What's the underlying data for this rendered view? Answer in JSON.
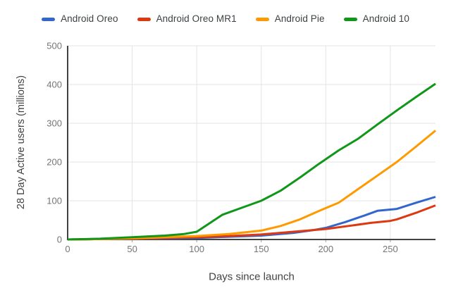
{
  "chart_data": {
    "type": "line",
    "title": "",
    "xlabel": "Days since launch",
    "ylabel": "28 Day Active users (millions)",
    "xlim": [
      0,
      285
    ],
    "ylim": [
      0,
      500
    ],
    "x_ticks": [
      0,
      50,
      100,
      150,
      200,
      250
    ],
    "y_ticks": [
      0,
      100,
      200,
      300,
      400,
      500
    ],
    "grid": true,
    "legend_position": "top",
    "colors": {
      "gridline": "#e3e3e3",
      "axis": "#424242",
      "tick_label": "#757575",
      "axis_title": "#424242",
      "background": "#ffffff"
    },
    "series": [
      {
        "name": "Android Oreo",
        "color": "#3366CC",
        "points": [
          [
            0,
            0
          ],
          [
            25,
            1
          ],
          [
            50,
            2
          ],
          [
            75,
            3
          ],
          [
            100,
            4
          ],
          [
            125,
            7
          ],
          [
            150,
            10
          ],
          [
            175,
            17
          ],
          [
            190,
            24
          ],
          [
            200,
            30
          ],
          [
            215,
            45
          ],
          [
            230,
            62
          ],
          [
            240,
            74
          ],
          [
            255,
            79
          ],
          [
            270,
            95
          ],
          [
            285,
            110
          ]
        ]
      },
      {
        "name": "Android Oreo MR1",
        "color": "#DC3912",
        "points": [
          [
            0,
            0
          ],
          [
            25,
            1
          ],
          [
            50,
            2
          ],
          [
            75,
            4
          ],
          [
            100,
            6
          ],
          [
            125,
            9
          ],
          [
            150,
            13
          ],
          [
            175,
            20
          ],
          [
            200,
            27
          ],
          [
            220,
            36
          ],
          [
            235,
            43
          ],
          [
            250,
            48
          ],
          [
            255,
            52
          ],
          [
            270,
            69
          ],
          [
            285,
            88
          ]
        ]
      },
      {
        "name": "Android Pie",
        "color": "#FF9900",
        "points": [
          [
            0,
            0
          ],
          [
            25,
            1
          ],
          [
            50,
            3
          ],
          [
            75,
            6
          ],
          [
            100,
            9
          ],
          [
            125,
            14
          ],
          [
            150,
            23
          ],
          [
            165,
            35
          ],
          [
            180,
            52
          ],
          [
            195,
            74
          ],
          [
            210,
            95
          ],
          [
            225,
            130
          ],
          [
            240,
            165
          ],
          [
            255,
            200
          ],
          [
            270,
            240
          ],
          [
            285,
            281
          ]
        ]
      },
      {
        "name": "Android 10",
        "color": "#109618",
        "points": [
          [
            0,
            0
          ],
          [
            25,
            2
          ],
          [
            50,
            6
          ],
          [
            75,
            10
          ],
          [
            90,
            14
          ],
          [
            100,
            20
          ],
          [
            110,
            42
          ],
          [
            120,
            64
          ],
          [
            135,
            82
          ],
          [
            150,
            100
          ],
          [
            165,
            126
          ],
          [
            180,
            160
          ],
          [
            195,
            196
          ],
          [
            210,
            230
          ],
          [
            225,
            260
          ],
          [
            240,
            297
          ],
          [
            255,
            333
          ],
          [
            270,
            368
          ],
          [
            285,
            402
          ]
        ]
      }
    ]
  }
}
